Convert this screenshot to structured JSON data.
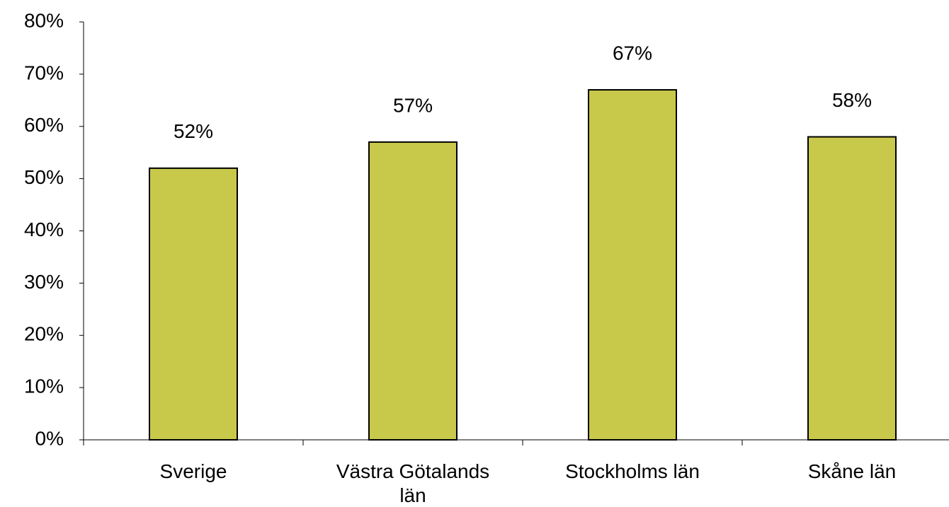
{
  "chart_data": {
    "type": "bar",
    "categories": [
      "Sverige",
      "Västra Götalands län",
      "Stockholms län",
      "Skåne län"
    ],
    "values": [
      52,
      57,
      67,
      58
    ],
    "value_labels": [
      "52%",
      "57%",
      "67%",
      "58%"
    ],
    "color": "#c8c84b",
    "ylim": [
      0,
      80
    ],
    "yticks": [
      {
        "value": 0,
        "label": "0%"
      },
      {
        "value": 10,
        "label": "10%"
      },
      {
        "value": 20,
        "label": "20%"
      },
      {
        "value": 30,
        "label": "30%"
      },
      {
        "value": 40,
        "label": "40%"
      },
      {
        "value": 50,
        "label": "50%"
      },
      {
        "value": 60,
        "label": "60%"
      },
      {
        "value": 70,
        "label": "70%"
      },
      {
        "value": 80,
        "label": "80%"
      }
    ],
    "grid": false
  }
}
